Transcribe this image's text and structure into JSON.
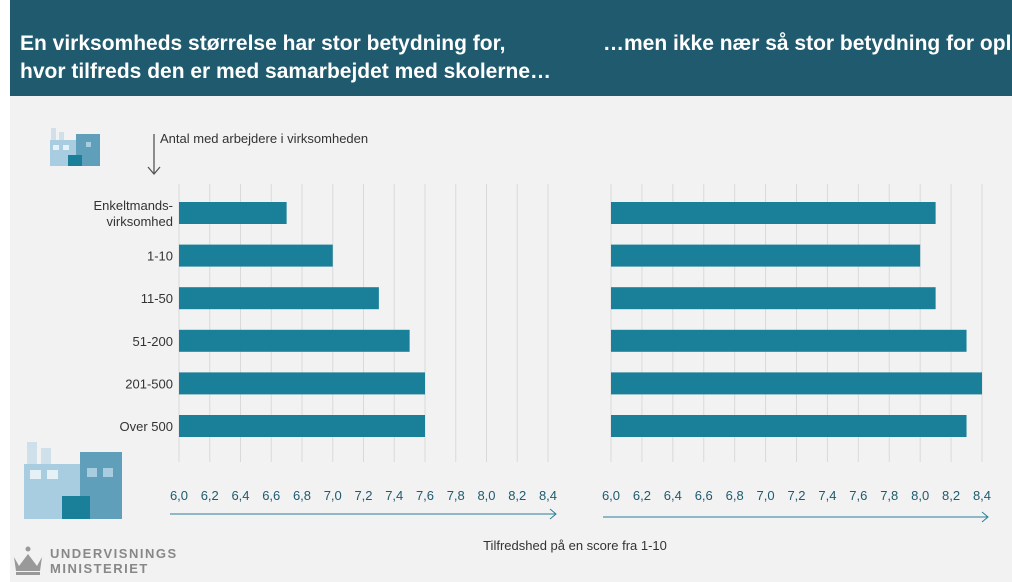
{
  "banner": {
    "title_left": "En virksomheds størrelse har stor betydning for,\nhvor tilfreds den er med samarbejdet med skolerne…",
    "title_right": "…men ikke nær så stor betydning for\noplevelsen af samarbejdet med eleverne"
  },
  "legend": {
    "category_label": "Antal med arbejdere i virksomheden"
  },
  "footer": {
    "logo_line1": "UNDERVISNINGS",
    "logo_line2": "MINISTERIET"
  },
  "colors": {
    "banner": "#1f5a6e",
    "bar": "#1a7f98",
    "background": "#f2f2f2"
  },
  "chart_data": {
    "type": "bar",
    "orientation": "horizontal",
    "categories": [
      "Enkeltmands-\nvirksomhed",
      "1-10",
      "11-50",
      "51-200",
      "201-500",
      "Over 500"
    ],
    "xlabel": "Tilfredshed på en score fra 1-10",
    "xlim": [
      6.0,
      8.4
    ],
    "ticks": [
      "6,0",
      "6,2",
      "6,4",
      "6,6",
      "6,8",
      "7,0",
      "7,2",
      "7,4",
      "7,6",
      "7,8",
      "8,0",
      "8,2",
      "8,4"
    ],
    "panels": [
      {
        "values": [
          6.7,
          7.0,
          7.3,
          7.5,
          7.6,
          7.6
        ]
      },
      {
        "values": [
          8.1,
          8.0,
          8.1,
          8.3,
          8.4,
          8.3
        ]
      }
    ],
    "grid": true
  }
}
